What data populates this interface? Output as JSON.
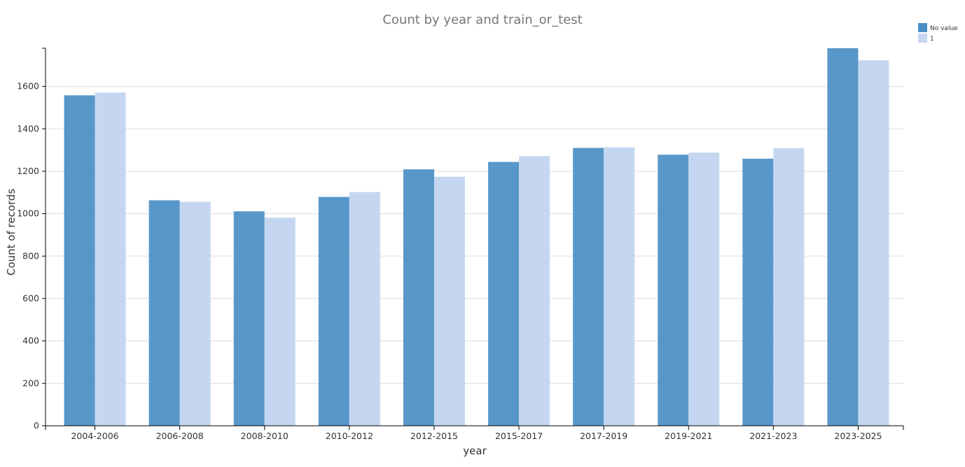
{
  "chart_data": {
    "type": "bar",
    "title": "Count by year and train_or_test",
    "xlabel": "year",
    "ylabel": "Count of records",
    "ylim": [
      0,
      1780
    ],
    "yticks": [
      0,
      200,
      400,
      600,
      800,
      1000,
      1200,
      1400,
      1600
    ],
    "grid": true,
    "legend_position": "top-right",
    "categories": [
      "2004-2006",
      "2006-2008",
      "2008-2010",
      "2010-2012",
      "2012-2015",
      "2015-2017",
      "2017-2019",
      "2019-2021",
      "2021-2023",
      "2023-2025"
    ],
    "series": [
      {
        "name": "No value",
        "color": "#4a8ec4",
        "values": [
          1558,
          1063,
          1011,
          1079,
          1209,
          1244,
          1310,
          1278,
          1259,
          1780
        ]
      },
      {
        "name": "1",
        "color": "#c5d7f0",
        "values": [
          1571,
          1056,
          981,
          1102,
          1174,
          1271,
          1313,
          1288,
          1309,
          1723
        ]
      }
    ]
  }
}
